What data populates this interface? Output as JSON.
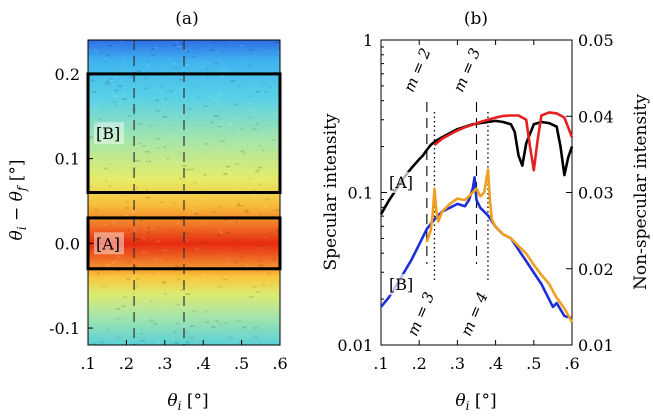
{
  "chart_data": [
    {
      "type": "heatmap",
      "panel_label": "(a)",
      "xlabel": "θ_i [°]",
      "ylabel": "θ_i − θ_f [°]",
      "xlim": [
        0.1,
        0.6
      ],
      "ylim": [
        -0.12,
        0.24
      ],
      "xticks": [
        {
          "v": 0.1,
          "label": ".1"
        },
        {
          "v": 0.2,
          "label": ".2"
        },
        {
          "v": 0.3,
          "label": ".3"
        },
        {
          "v": 0.4,
          "label": ".4"
        },
        {
          "v": 0.5,
          "label": ".5"
        },
        {
          "v": 0.6,
          "label": ".6"
        }
      ],
      "yticks": [
        {
          "v": 0.2,
          "label": "0.2"
        },
        {
          "v": 0.1,
          "label": "0.1"
        },
        {
          "v": 0.0,
          "label": "0.0"
        },
        {
          "v": -0.1,
          "label": "-0.1"
        }
      ],
      "dashed_lines_x": [
        0.22,
        0.35
      ],
      "colormap_bands": [
        {
          "y": 0.24,
          "color": "#2e6ee6"
        },
        {
          "y": 0.215,
          "color": "#40b4f0"
        },
        {
          "y": 0.17,
          "color": "#5ad2e6"
        },
        {
          "y": 0.12,
          "color": "#a8e6a8"
        },
        {
          "y": 0.075,
          "color": "#e6ec68"
        },
        {
          "y": 0.045,
          "color": "#f8bc38"
        },
        {
          "y": 0.022,
          "color": "#f07828"
        },
        {
          "y": 0.0,
          "color": "#e62a10"
        },
        {
          "y": -0.022,
          "color": "#f07828"
        },
        {
          "y": -0.04,
          "color": "#f8c83c"
        },
        {
          "y": -0.06,
          "color": "#dcea70"
        },
        {
          "y": -0.085,
          "color": "#a8e6a8"
        },
        {
          "y": -0.12,
          "color": "#5ad0d8"
        }
      ],
      "boxes": [
        {
          "label": "[B]",
          "x": [
            0.1,
            0.6
          ],
          "y": [
            0.06,
            0.2
          ]
        },
        {
          "label": "[A]",
          "x": [
            0.1,
            0.6
          ],
          "y": [
            -0.03,
            0.03
          ]
        }
      ]
    },
    {
      "type": "line",
      "panel_label": "(b)",
      "xlabel": "θ_i [°]",
      "ylabel_left": "Specular intensity",
      "ylabel_right": "Non-specular intensity",
      "xlim": [
        0.1,
        0.6
      ],
      "ylim_left": [
        0.01,
        1
      ],
      "yscale_left": "log",
      "ylim_right": [
        0.01,
        0.05
      ],
      "xticks": [
        {
          "v": 0.1,
          "label": ".1"
        },
        {
          "v": 0.2,
          "label": ".2"
        },
        {
          "v": 0.3,
          "label": ".3"
        },
        {
          "v": 0.4,
          "label": ".4"
        },
        {
          "v": 0.5,
          "label": ".5"
        },
        {
          "v": 0.6,
          "label": ".6"
        }
      ],
      "yticks_left": [
        {
          "v": 1,
          "label": "1"
        },
        {
          "v": 0.1,
          "label": "0.1"
        },
        {
          "v": 0.01,
          "label": "0.01"
        }
      ],
      "yticks_right": [
        {
          "v": 0.05,
          "label": "0.05"
        },
        {
          "v": 0.04,
          "label": "0.04"
        },
        {
          "v": 0.03,
          "label": "0.03"
        },
        {
          "v": 0.02,
          "label": "0.02"
        },
        {
          "v": 0.01,
          "label": "0.01"
        }
      ],
      "vlines": [
        {
          "x": 0.22,
          "style": "dashed",
          "label": "m = 2",
          "label_pos": "top"
        },
        {
          "x": 0.35,
          "style": "dashed",
          "label": "m = 3",
          "label_pos": "top"
        },
        {
          "x": 0.24,
          "style": "dotted",
          "label": "m = 3",
          "label_pos": "bottom"
        },
        {
          "x": 0.38,
          "style": "dotted",
          "label": "m = 4",
          "label_pos": "bottom"
        }
      ],
      "group_labels": [
        {
          "label": "[A]",
          "near": "specular curves"
        },
        {
          "label": "[B]",
          "near": "non-specular curves"
        }
      ],
      "series": [
        {
          "axis": "left",
          "color": "#000000",
          "x": [
            0.1,
            0.12,
            0.14,
            0.16,
            0.18,
            0.2,
            0.21,
            0.22,
            0.23,
            0.24,
            0.26,
            0.28,
            0.3,
            0.32,
            0.34,
            0.36,
            0.38,
            0.4,
            0.42,
            0.44,
            0.45,
            0.46,
            0.47,
            0.48,
            0.5,
            0.52,
            0.54,
            0.56,
            0.57,
            0.58,
            0.59,
            0.6
          ],
          "y": [
            0.072,
            0.088,
            0.105,
            0.125,
            0.145,
            0.165,
            0.175,
            0.19,
            0.205,
            0.215,
            0.23,
            0.245,
            0.26,
            0.27,
            0.28,
            0.285,
            0.29,
            0.295,
            0.29,
            0.28,
            0.25,
            0.175,
            0.15,
            0.21,
            0.28,
            0.29,
            0.285,
            0.27,
            0.2,
            0.13,
            0.17,
            0.2
          ]
        },
        {
          "axis": "left",
          "color": "#e62020",
          "x": [
            0.24,
            0.26,
            0.28,
            0.3,
            0.32,
            0.34,
            0.36,
            0.38,
            0.4,
            0.42,
            0.44,
            0.46,
            0.48,
            0.49,
            0.5,
            0.51,
            0.52,
            0.54,
            0.56,
            0.58,
            0.6
          ],
          "y": [
            0.205,
            0.225,
            0.24,
            0.255,
            0.268,
            0.278,
            0.29,
            0.3,
            0.31,
            0.318,
            0.32,
            0.32,
            0.3,
            0.2,
            0.14,
            0.22,
            0.32,
            0.335,
            0.33,
            0.31,
            0.23
          ]
        },
        {
          "axis": "right",
          "color": "#1f2fd8",
          "x": [
            0.1,
            0.12,
            0.14,
            0.16,
            0.18,
            0.2,
            0.22,
            0.24,
            0.26,
            0.28,
            0.3,
            0.32,
            0.33,
            0.34,
            0.345,
            0.35,
            0.36,
            0.38,
            0.4,
            0.42,
            0.44,
            0.46,
            0.48,
            0.5,
            0.52,
            0.54,
            0.55,
            0.56,
            0.58,
            0.6
          ],
          "y": [
            0.015,
            0.0162,
            0.0178,
            0.0195,
            0.0212,
            0.0232,
            0.0252,
            0.0265,
            0.0275,
            0.028,
            0.0285,
            0.0282,
            0.029,
            0.0305,
            0.032,
            0.029,
            0.028,
            0.027,
            0.0255,
            0.0245,
            0.024,
            0.0225,
            0.021,
            0.0195,
            0.018,
            0.016,
            0.015,
            0.0155,
            0.0138,
            0.0135
          ]
        },
        {
          "axis": "right",
          "color": "#f0a020",
          "x": [
            0.22,
            0.23,
            0.235,
            0.24,
            0.245,
            0.25,
            0.26,
            0.28,
            0.3,
            0.32,
            0.34,
            0.35,
            0.36,
            0.37,
            0.375,
            0.38,
            0.385,
            0.39,
            0.4,
            0.42,
            0.44,
            0.46,
            0.48,
            0.5,
            0.52,
            0.54,
            0.56,
            0.58,
            0.6
          ],
          "y": [
            0.0235,
            0.025,
            0.027,
            0.0305,
            0.0275,
            0.0262,
            0.0275,
            0.0285,
            0.0292,
            0.029,
            0.03,
            0.0305,
            0.0295,
            0.03,
            0.0315,
            0.033,
            0.029,
            0.0265,
            0.0255,
            0.0245,
            0.024,
            0.023,
            0.022,
            0.0205,
            0.0192,
            0.018,
            0.0162,
            0.0148,
            0.013
          ]
        }
      ]
    }
  ]
}
